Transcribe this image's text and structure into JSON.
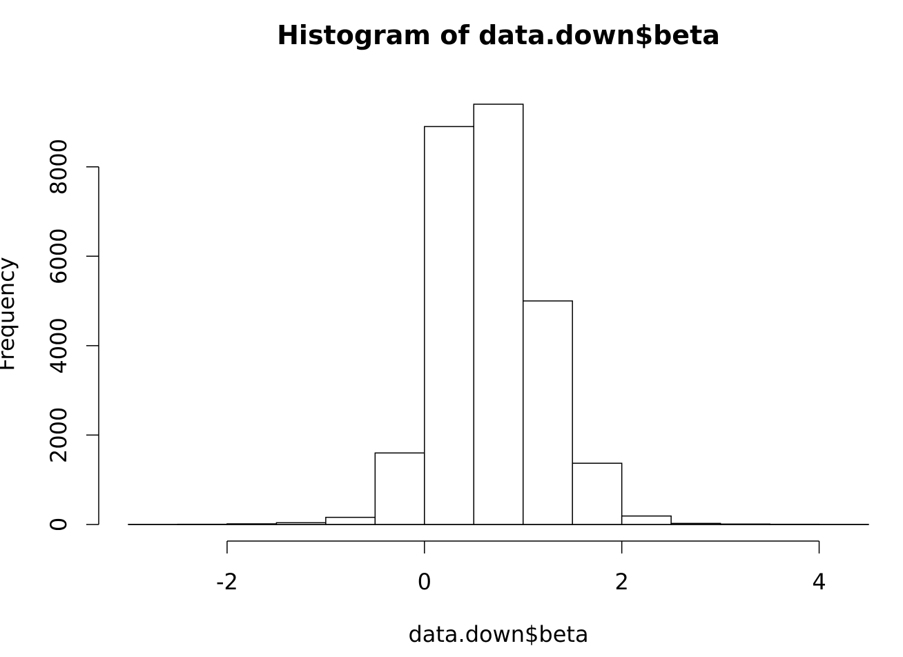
{
  "chart_data": {
    "type": "bar",
    "title": "Histogram of data.down$beta",
    "xlabel": "data.down$beta",
    "ylabel": "Frequency",
    "bin_edges": [
      -3,
      -2.5,
      -2,
      -1.5,
      -1,
      -0.5,
      0,
      0.5,
      1,
      1.5,
      2,
      2.5,
      3,
      3.5,
      4,
      4.5
    ],
    "values": [
      2,
      5,
      15,
      40,
      160,
      1600,
      8900,
      9400,
      5000,
      1370,
      190,
      25,
      10,
      5,
      2
    ],
    "x_ticks": [
      -2,
      0,
      2,
      4
    ],
    "y_ticks": [
      0,
      2000,
      4000,
      6000,
      8000
    ],
    "xlim": [
      -3,
      4.5
    ],
    "ylim": [
      0,
      9400
    ],
    "grid": false,
    "colors": {
      "bar_fill": "#ffffff",
      "bar_stroke": "#000000"
    }
  }
}
